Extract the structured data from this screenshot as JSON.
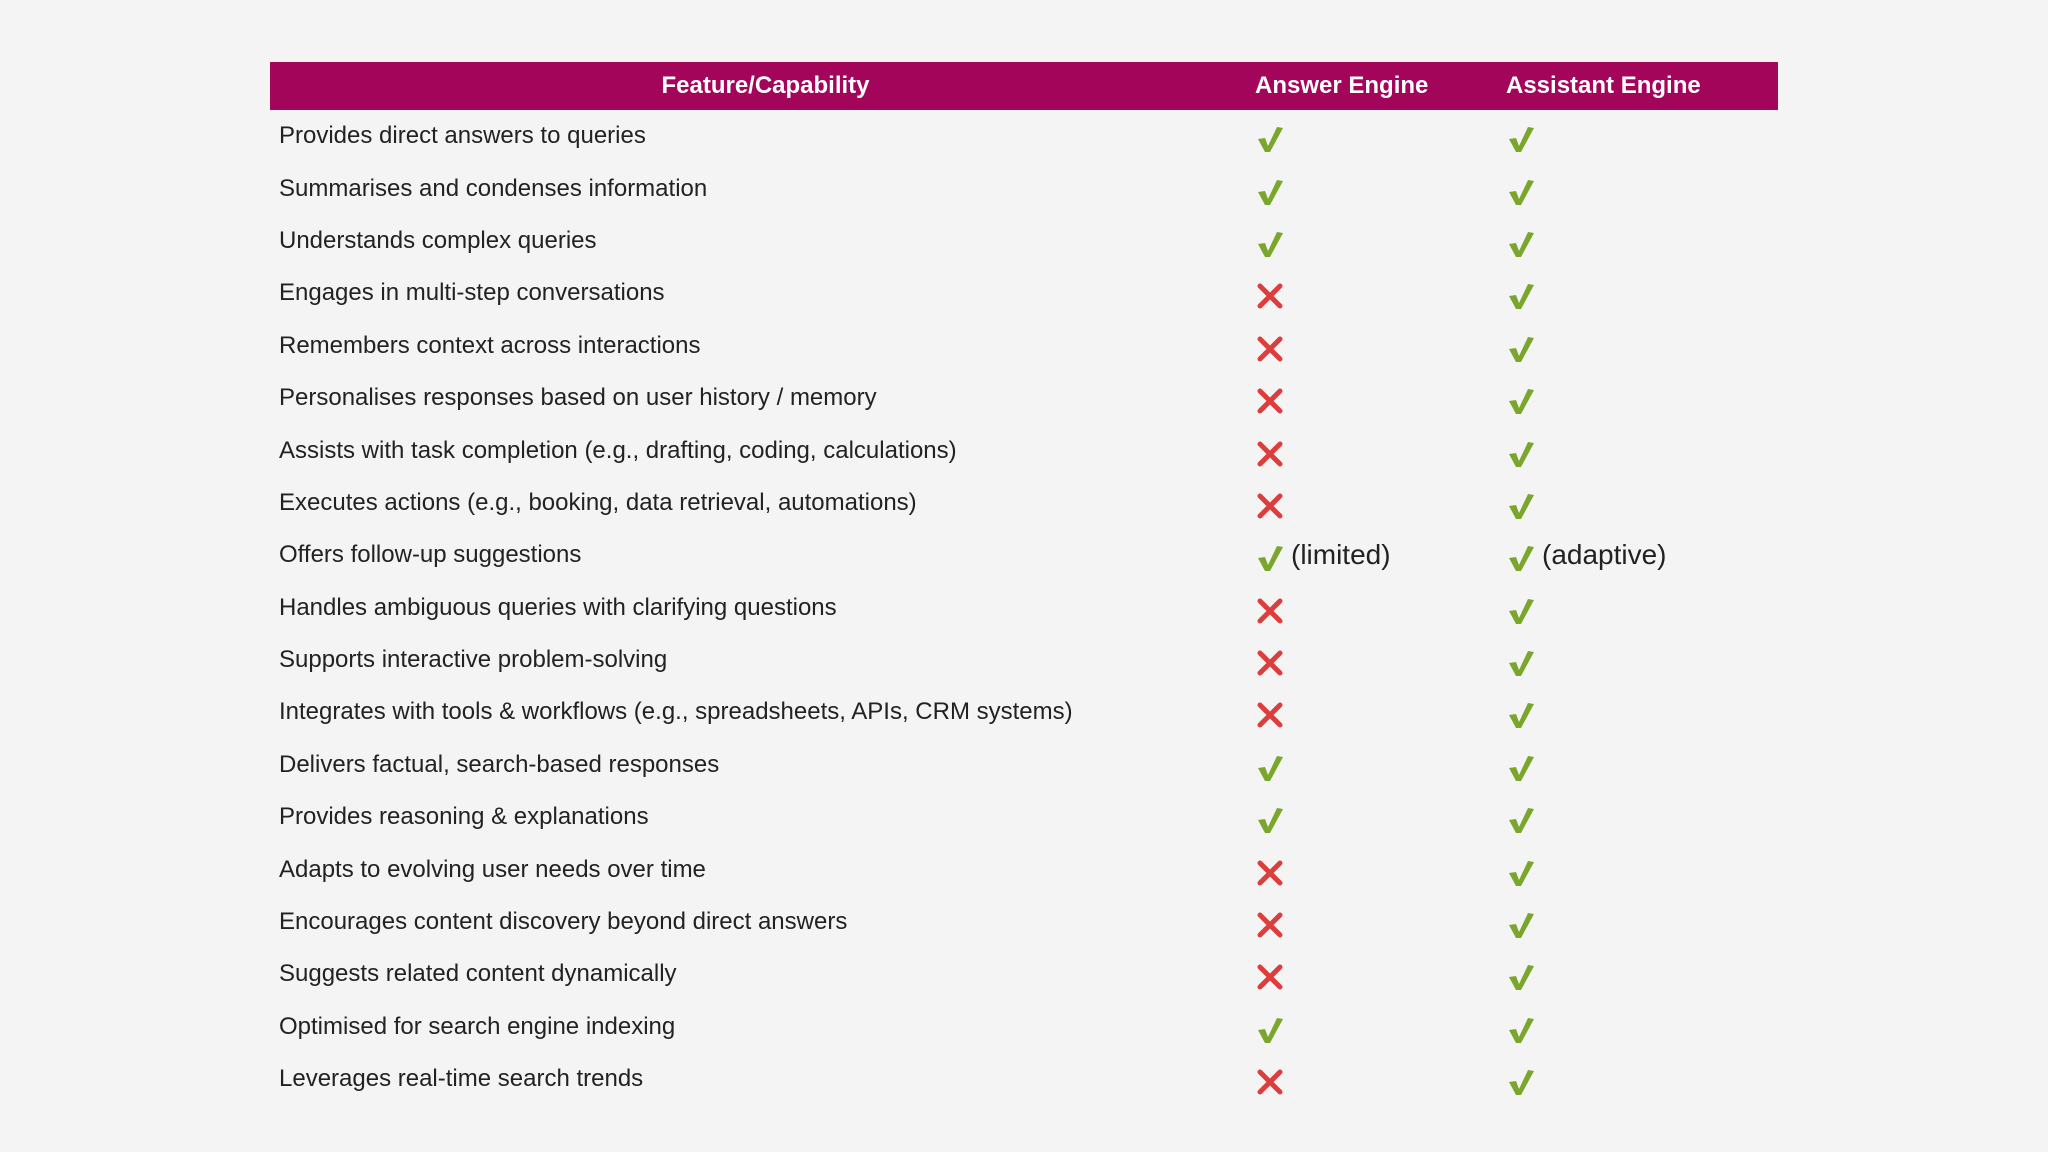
{
  "header": {
    "feature": "Feature/Capability",
    "answer_engine": "Answer Engine",
    "assistant_engine": "Assistant Engine"
  },
  "colors": {
    "header_bg": "#a3055b",
    "check": "#7aa62b",
    "cross": "#dd3d3d"
  },
  "icons": {
    "yes": "check-icon",
    "no": "cross-icon"
  },
  "rows": [
    {
      "feature": "Provides direct answers to queries",
      "answer": "yes",
      "answer_note": "",
      "assistant": "yes",
      "assistant_note": ""
    },
    {
      "feature": "Summarises and condenses information",
      "answer": "yes",
      "answer_note": "",
      "assistant": "yes",
      "assistant_note": ""
    },
    {
      "feature": "Understands complex queries",
      "answer": "yes",
      "answer_note": "",
      "assistant": "yes",
      "assistant_note": ""
    },
    {
      "feature": "Engages in multi-step conversations",
      "answer": "no",
      "answer_note": "",
      "assistant": "yes",
      "assistant_note": ""
    },
    {
      "feature": "Remembers context across interactions",
      "answer": "no",
      "answer_note": "",
      "assistant": "yes",
      "assistant_note": ""
    },
    {
      "feature": "Personalises responses based on user history / memory",
      "answer": "no",
      "answer_note": "",
      "assistant": "yes",
      "assistant_note": ""
    },
    {
      "feature": "Assists with task completion (e.g., drafting, coding, calculations)",
      "answer": "no",
      "answer_note": "",
      "assistant": "yes",
      "assistant_note": ""
    },
    {
      "feature": "Executes actions (e.g., booking, data retrieval, automations)",
      "answer": "no",
      "answer_note": "",
      "assistant": "yes",
      "assistant_note": ""
    },
    {
      "feature": "Offers follow-up suggestions",
      "answer": "yes",
      "answer_note": "(limited)",
      "assistant": "yes",
      "assistant_note": "(adaptive)"
    },
    {
      "feature": "Handles ambiguous queries with clarifying questions",
      "answer": "no",
      "answer_note": "",
      "assistant": "yes",
      "assistant_note": ""
    },
    {
      "feature": "Supports interactive problem-solving",
      "answer": "no",
      "answer_note": "",
      "assistant": "yes",
      "assistant_note": ""
    },
    {
      "feature": "Integrates with tools & workflows (e.g., spreadsheets, APIs, CRM systems)",
      "answer": "no",
      "answer_note": "",
      "assistant": "yes",
      "assistant_note": ""
    },
    {
      "feature": "Delivers factual, search-based responses",
      "answer": "yes",
      "answer_note": "",
      "assistant": "yes",
      "assistant_note": ""
    },
    {
      "feature": "Provides reasoning & explanations",
      "answer": "yes",
      "answer_note": "",
      "assistant": "yes",
      "assistant_note": ""
    },
    {
      "feature": "Adapts to evolving user needs over time",
      "answer": "no",
      "answer_note": "",
      "assistant": "yes",
      "assistant_note": ""
    },
    {
      "feature": "Encourages content discovery beyond direct answers",
      "answer": "no",
      "answer_note": "",
      "assistant": "yes",
      "assistant_note": ""
    },
    {
      "feature": "Suggests related content dynamically",
      "answer": "no",
      "answer_note": "",
      "assistant": "yes",
      "assistant_note": ""
    },
    {
      "feature": "Optimised for search engine indexing",
      "answer": "yes",
      "answer_note": "",
      "assistant": "yes",
      "assistant_note": ""
    },
    {
      "feature": "Leverages real-time search trends",
      "answer": "no",
      "answer_note": "",
      "assistant": "yes",
      "assistant_note": ""
    }
  ]
}
